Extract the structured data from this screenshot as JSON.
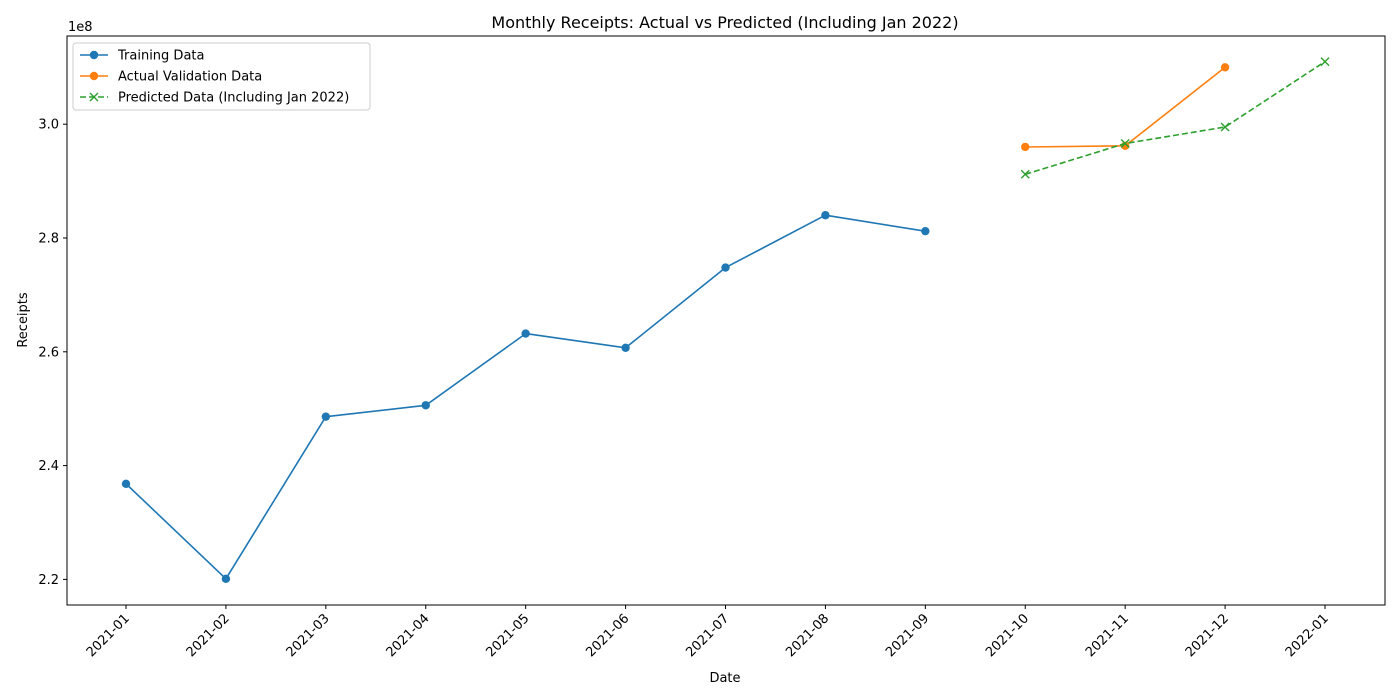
{
  "chart_data": {
    "type": "line",
    "title": "Monthly Receipts: Actual vs Predicted (Including Jan 2022)",
    "xlabel": "Date",
    "ylabel": "Receipts",
    "y_offset_label": "1e8",
    "categories": [
      "2021-01",
      "2021-02",
      "2021-03",
      "2021-04",
      "2021-05",
      "2021-06",
      "2021-07",
      "2021-08",
      "2021-09",
      "2021-10",
      "2021-11",
      "2021-12",
      "2022-01"
    ],
    "yticks": [
      2.2,
      2.4,
      2.6,
      2.8,
      3.0
    ],
    "ytick_labels": [
      "2.2",
      "2.4",
      "2.6",
      "2.8",
      "3.0"
    ],
    "ylim": [
      2.155,
      3.155
    ],
    "y_scale_note": "values in units of 1e8",
    "grid": false,
    "legend_position": "top-left",
    "series": [
      {
        "name": "Training Data",
        "color": "#1f77b4",
        "marker": "circle",
        "linestyle": "solid",
        "x": [
          "2021-01",
          "2021-02",
          "2021-03",
          "2021-04",
          "2021-05",
          "2021-06",
          "2021-07",
          "2021-08",
          "2021-09"
        ],
        "values": [
          2.368,
          2.201,
          2.486,
          2.506,
          2.632,
          2.607,
          2.748,
          2.84,
          2.812
        ]
      },
      {
        "name": "Actual Validation Data",
        "color": "#ff7f0e",
        "marker": "circle",
        "linestyle": "solid",
        "x": [
          "2021-10",
          "2021-11",
          "2021-12"
        ],
        "values": [
          2.96,
          2.962,
          3.1
        ]
      },
      {
        "name": "Predicted Data (Including Jan 2022)",
        "color": "#2ca02c",
        "marker": "x",
        "linestyle": "dashed",
        "x": [
          "2021-10",
          "2021-11",
          "2021-12",
          "2022-01"
        ],
        "values": [
          2.912,
          2.966,
          2.995,
          3.11
        ]
      }
    ]
  }
}
